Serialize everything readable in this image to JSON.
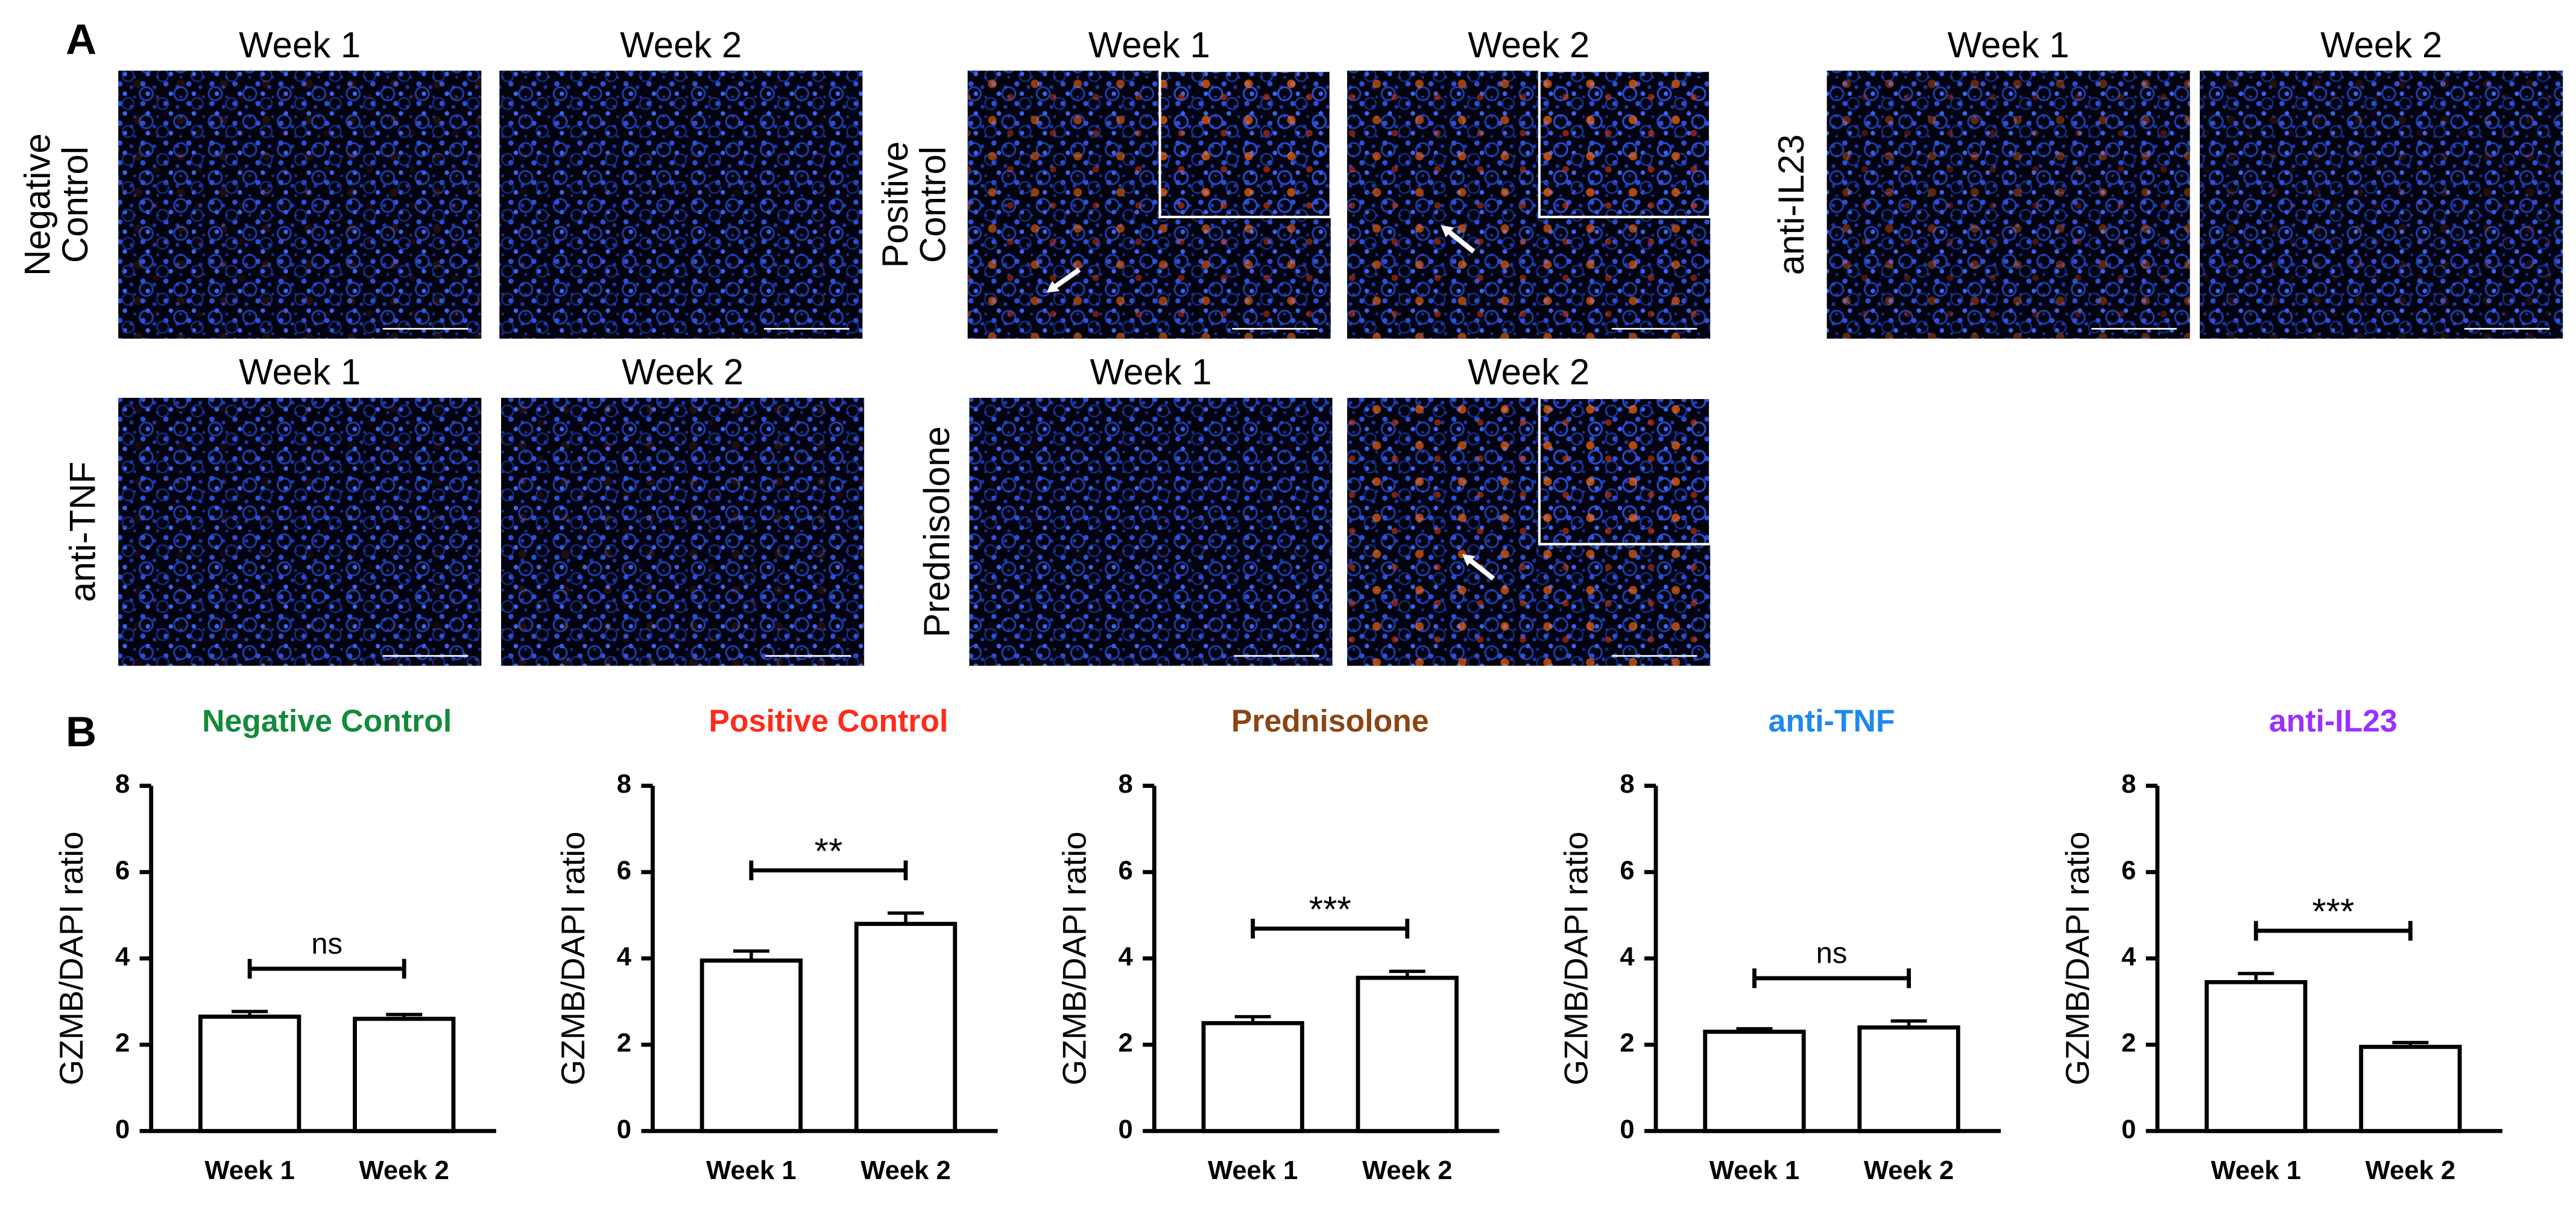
{
  "panel_labels": [
    "A",
    "B"
  ],
  "panel_a": {
    "groups": [
      {
        "label_lines": [
          "Negative",
          "Control"
        ],
        "images": [
          "Week 1",
          "Week 2"
        ]
      },
      {
        "label_lines": [
          "Positive",
          "Control"
        ],
        "images": [
          "Week 1",
          "Week 2"
        ]
      },
      {
        "label_lines": [
          "anti-IL23"
        ],
        "images": [
          "Week 1",
          "Week 2"
        ]
      },
      {
        "label_lines": [
          "anti-TNF"
        ],
        "images": [
          "Week 1",
          "Week 2"
        ]
      },
      {
        "label_lines": [
          "Prednisolone"
        ],
        "images": [
          "Week 1",
          "Week 2"
        ]
      }
    ]
  },
  "chart_data": [
    {
      "type": "bar",
      "title": "Negative Control",
      "title_color": "#138a3c",
      "ylabel": "GZMB/DAPI ratio",
      "categories": [
        "Week 1",
        "Week 2"
      ],
      "values": [
        2.65,
        2.6
      ],
      "errors": [
        0.12,
        0.1
      ],
      "significance": "ns",
      "ylim": [
        0,
        8
      ],
      "yticks": [
        0,
        2,
        4,
        6,
        8
      ],
      "color": "#ffffff"
    },
    {
      "type": "bar",
      "title": "Positive Control",
      "title_color": "#ff2a1a",
      "ylabel": "GZMB/DAPI ratio",
      "categories": [
        "Week 1",
        "Week 2"
      ],
      "values": [
        3.95,
        4.8
      ],
      "errors": [
        0.22,
        0.25
      ],
      "significance": "**",
      "ylim": [
        0,
        8
      ],
      "yticks": [
        0,
        2,
        4,
        6,
        8
      ],
      "color": "#ffffff"
    },
    {
      "type": "bar",
      "title": "Prednisolone",
      "title_color": "#8b4513",
      "ylabel": "GZMB/DAPI ratio",
      "categories": [
        "Week 1",
        "Week 2"
      ],
      "values": [
        2.5,
        3.55
      ],
      "errors": [
        0.15,
        0.15
      ],
      "significance": "***",
      "ylim": [
        0,
        8
      ],
      "yticks": [
        0,
        2,
        4,
        6,
        8
      ],
      "color": "#ffffff"
    },
    {
      "type": "bar",
      "title": "anti-TNF",
      "title_color": "#1e88f0",
      "ylabel": "GZMB/DAPI ratio",
      "categories": [
        "Week 1",
        "Week 2"
      ],
      "values": [
        2.3,
        2.4
      ],
      "errors": [
        0.07,
        0.15
      ],
      "significance": "ns",
      "ylim": [
        0,
        8
      ],
      "yticks": [
        0,
        2,
        4,
        6,
        8
      ],
      "color": "#ffffff"
    },
    {
      "type": "bar",
      "title": "anti-IL23",
      "title_color": "#9b30ff",
      "ylabel": "GZMB/DAPI ratio",
      "categories": [
        "Week 1",
        "Week 2"
      ],
      "values": [
        3.45,
        1.95
      ],
      "errors": [
        0.2,
        0.1
      ],
      "significance": "***",
      "ylim": [
        0,
        8
      ],
      "yticks": [
        0,
        2,
        4,
        6,
        8
      ],
      "color": "#ffffff"
    }
  ]
}
